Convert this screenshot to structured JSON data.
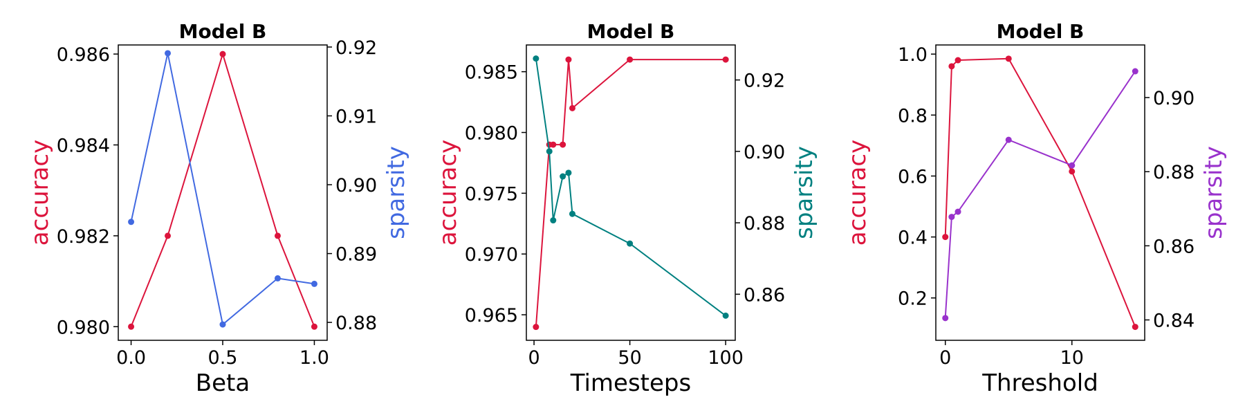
{
  "chart_data": [
    {
      "type": "line",
      "title": "Model B",
      "xlabel": "Beta",
      "ylabel": "accuracy",
      "y2label": "sparsity",
      "xlim": [
        -0.07,
        1.07
      ],
      "ylim": [
        0.9797,
        0.9862
      ],
      "y2lim": [
        0.8774,
        0.9203
      ],
      "xticks": [
        0,
        0.5,
        1.0
      ],
      "xtick_labels": [
        "0.0",
        "0.5",
        "1.0"
      ],
      "yticks": [
        0.98,
        0.982,
        0.984,
        0.986
      ],
      "ytick_labels": [
        "0.980",
        "0.982",
        "0.984",
        "0.986"
      ],
      "y2ticks": [
        0.88,
        0.89,
        0.9,
        0.91,
        0.92
      ],
      "y2tick_labels": [
        "0.88",
        "0.89",
        "0.90",
        "0.91",
        "0.92"
      ],
      "series": [
        {
          "axis": "left",
          "color": "#dc143c",
          "x": [
            0,
            0.2,
            0.5,
            0.8,
            1.0
          ],
          "values": [
            0.98,
            0.982,
            0.986,
            0.982,
            0.98
          ]
        },
        {
          "axis": "right",
          "color": "#4169e1",
          "x": [
            0,
            0.2,
            0.5,
            0.8,
            1.0
          ],
          "values": [
            0.8946,
            0.9191,
            0.8797,
            0.8864,
            0.8856
          ]
        }
      ]
    },
    {
      "type": "line",
      "title": "Model B",
      "xlabel": "Timesteps",
      "ylabel": "accuracy",
      "y2label": "sparsity",
      "xlim": [
        -4,
        105
      ],
      "ylim": [
        0.9629,
        0.9872
      ],
      "y2lim": [
        0.8471,
        0.9298
      ],
      "xticks": [
        0,
        50,
        100
      ],
      "xtick_labels": [
        "0",
        "50",
        "100"
      ],
      "yticks": [
        0.965,
        0.97,
        0.975,
        0.98,
        0.985
      ],
      "ytick_labels": [
        "0.965",
        "0.970",
        "0.975",
        "0.980",
        "0.985"
      ],
      "y2ticks": [
        0.86,
        0.88,
        0.9,
        0.92
      ],
      "y2tick_labels": [
        "0.86",
        "0.88",
        "0.90",
        "0.92"
      ],
      "series": [
        {
          "axis": "left",
          "color": "#dc143c",
          "x": [
            1,
            8,
            10,
            15,
            18,
            20,
            50,
            100
          ],
          "values": [
            0.964,
            0.979,
            0.979,
            0.979,
            0.986,
            0.982,
            0.986,
            0.986
          ]
        },
        {
          "axis": "right",
          "color": "#008080",
          "x": [
            1,
            8,
            10,
            15,
            18,
            20,
            50,
            100
          ],
          "values": [
            0.926,
            0.9,
            0.8807,
            0.893,
            0.894,
            0.8825,
            0.8742,
            0.854
          ]
        }
      ]
    },
    {
      "type": "line",
      "title": "Model B",
      "xlabel": "Threshold",
      "ylabel": "accuracy",
      "y2label": "sparsity",
      "xlim": [
        -0.75,
        15.75
      ],
      "ylim": [
        0.061,
        1.03
      ],
      "y2lim": [
        0.8345,
        0.9142
      ],
      "xticks": [
        0,
        10
      ],
      "xtick_labels": [
        "0",
        "10"
      ],
      "yticks": [
        0.2,
        0.4,
        0.6,
        0.8,
        1.0
      ],
      "ytick_labels": [
        "0.2",
        "0.4",
        "0.6",
        "0.8",
        "1.0"
      ],
      "y2ticks": [
        0.84,
        0.86,
        0.88,
        0.9
      ],
      "y2tick_labels": [
        "0.84",
        "0.86",
        "0.88",
        "0.90"
      ],
      "series": [
        {
          "axis": "left",
          "color": "#dc143c",
          "x": [
            0,
            0.5,
            1,
            5,
            10,
            15
          ],
          "values": [
            0.4,
            0.96,
            0.98,
            0.985,
            0.615,
            0.105
          ]
        },
        {
          "axis": "right",
          "color": "#9932cc",
          "x": [
            0,
            0.5,
            1,
            5,
            10,
            15
          ],
          "values": [
            0.8405,
            0.8678,
            0.8692,
            0.8886,
            0.8817,
            0.9071
          ]
        }
      ]
    }
  ]
}
